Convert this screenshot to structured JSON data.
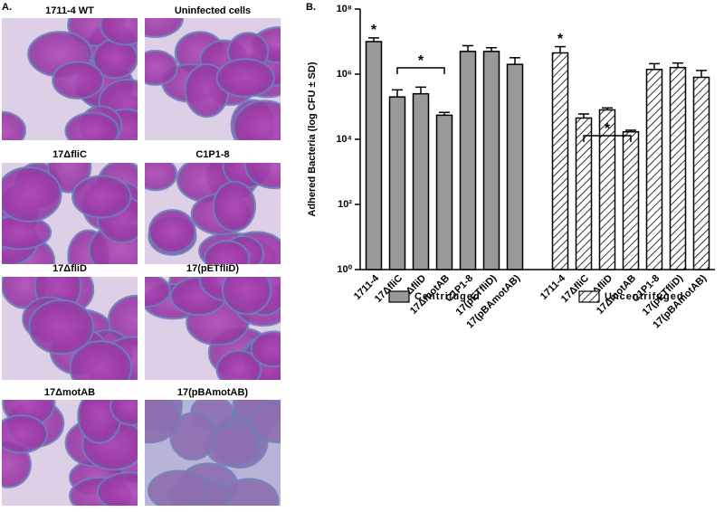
{
  "panels": {
    "a": "A.",
    "b": "B."
  },
  "micrographs": [
    "1711-4 WT",
    "Uninfected cells",
    "17ΔfliC",
    "C1P1-8",
    "17ΔfliD",
    "17(pETfliD)",
    "17ΔmotAB",
    "17(pBAmotAB)"
  ],
  "chart_data": {
    "type": "bar",
    "y_label": "Adhered Bacteria (log CFU ± SD)",
    "log_y": true,
    "ylim": [
      1,
      100000000
    ],
    "yticks": [
      {
        "value": 1,
        "label": "10⁰"
      },
      {
        "value": 100,
        "label": "10²"
      },
      {
        "value": 10000,
        "label": "10⁴"
      },
      {
        "value": 1000000,
        "label": "10⁶"
      },
      {
        "value": 100000000,
        "label": "10⁸"
      }
    ],
    "categories": [
      "1711-4",
      "17ΔfliC",
      "17ΔfliD",
      "17ΔmotAB",
      "C1P1-8",
      "17(pETfliD)",
      "17(pBAmotAB)"
    ],
    "series": [
      {
        "name": "Centrifuged",
        "color": "#999999",
        "hatch": false,
        "values": [
          10000000,
          200000,
          250000,
          55000,
          5000000,
          5000000,
          2000000
        ],
        "errors": [
          3000000,
          130000,
          150000,
          12000,
          2500000,
          1500000,
          1200000
        ]
      },
      {
        "name": "Uncentrifuged",
        "color": "#ffffff",
        "hatch": true,
        "values": [
          4500000,
          45000,
          80000,
          17000,
          1400000,
          1600000,
          800000
        ],
        "errors": [
          2500000,
          15000,
          12000,
          2000,
          700000,
          600000,
          500000
        ]
      }
    ],
    "annotations": [
      "*",
      "*",
      "*",
      "*"
    ],
    "legend": "bottom"
  }
}
